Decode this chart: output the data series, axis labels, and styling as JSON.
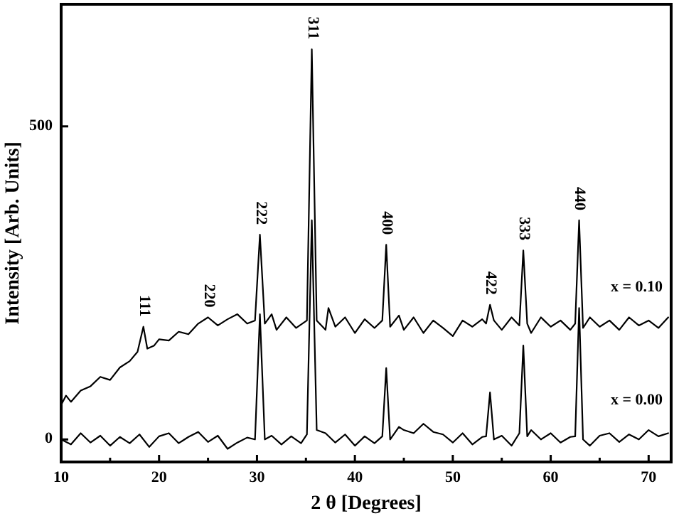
{
  "chart_data": {
    "type": "line",
    "xlabel": "2 θ [Degrees]",
    "ylabel": "Intensity [Arb. Units]",
    "xlim": [
      10,
      72.3
    ],
    "ylim": [
      -36,
      695
    ],
    "xticks": [
      10,
      {
        "value": 15,
        "label": null
      },
      20,
      {
        "value": 25,
        "label": null
      },
      30,
      {
        "value": 35,
        "label": null
      },
      40,
      {
        "value": 45,
        "label": null
      },
      50,
      {
        "value": 55,
        "label": null
      },
      60,
      {
        "value": 65,
        "label": null
      },
      70
    ],
    "yticks": [
      0,
      500
    ],
    "grid": false,
    "line_style": "solid",
    "series": [
      {
        "name": "x = 0.10",
        "color": "#000000",
        "x": [
          10,
          10.5,
          11,
          12,
          13,
          14,
          15,
          16,
          17,
          17.8,
          18.4,
          18.8,
          19.5,
          20,
          21,
          22,
          23,
          24,
          25,
          26,
          27,
          28,
          29,
          29.8,
          30.3,
          30.8,
          31.5,
          32,
          33,
          34,
          35.1,
          35.6,
          36.1,
          37,
          37.3,
          38,
          39,
          40,
          41,
          42,
          42.8,
          43.2,
          43.6,
          44.5,
          45,
          46,
          47,
          48,
          49,
          50,
          51,
          52,
          53,
          53.4,
          53.8,
          54.2,
          55,
          56,
          56.8,
          57.2,
          57.6,
          58,
          59,
          60,
          61,
          62,
          62.5,
          62.9,
          63.3,
          64,
          65,
          66,
          67,
          68,
          69,
          70,
          71,
          72
        ],
        "values": [
          55,
          70,
          60,
          78,
          85,
          100,
          95,
          115,
          125,
          140,
          180,
          145,
          150,
          160,
          158,
          172,
          168,
          185,
          195,
          182,
          192,
          200,
          185,
          190,
          327,
          185,
          200,
          175,
          195,
          178,
          190,
          623,
          190,
          175,
          210,
          180,
          195,
          170,
          192,
          178,
          190,
          311,
          180,
          198,
          175,
          195,
          170,
          190,
          178,
          165,
          190,
          180,
          192,
          185,
          215,
          190,
          175,
          195,
          182,
          302,
          185,
          170,
          195,
          180,
          190,
          175,
          185,
          350,
          178,
          195,
          180,
          190,
          175,
          195,
          182,
          190,
          178,
          195
        ]
      },
      {
        "name": "x = 0.00",
        "color": "#000000",
        "x": [
          10,
          11,
          12,
          13,
          14,
          15,
          16,
          17,
          18,
          19,
          20,
          21,
          22,
          23,
          24,
          25,
          26,
          27,
          28,
          29,
          29.8,
          30.3,
          30.8,
          31.5,
          32.5,
          33.5,
          34.5,
          35.1,
          35.6,
          36.1,
          37,
          38,
          39,
          40,
          41,
          42,
          42.8,
          43.2,
          43.6,
          44.5,
          45,
          46,
          47,
          48,
          49,
          50,
          51,
          52,
          53,
          53.4,
          53.8,
          54.2,
          55,
          56,
          56.8,
          57.2,
          57.6,
          58,
          59,
          60,
          61,
          62,
          62.5,
          62.9,
          63.3,
          64,
          65,
          66,
          67,
          68,
          69,
          70,
          71,
          72
        ],
        "values": [
          0,
          -8,
          10,
          -5,
          6,
          -10,
          4,
          -6,
          8,
          -12,
          5,
          10,
          -6,
          4,
          12,
          -4,
          6,
          -15,
          -5,
          3,
          0,
          200,
          0,
          6,
          -8,
          5,
          -6,
          8,
          350,
          15,
          10,
          -5,
          8,
          -10,
          5,
          -6,
          5,
          114,
          0,
          20,
          15,
          10,
          25,
          12,
          8,
          -5,
          10,
          -8,
          4,
          5,
          75,
          0,
          6,
          -10,
          10,
          150,
          5,
          15,
          0,
          10,
          -5,
          4,
          5,
          210,
          0,
          -10,
          6,
          10,
          -4,
          8,
          0,
          15,
          5,
          10
        ]
      }
    ],
    "annotations": [
      {
        "text": "111",
        "x": 18.4,
        "y": 180
      },
      {
        "text": "220",
        "x": 25,
        "y": 195
      },
      {
        "text": "222",
        "x": 30.3,
        "y": 327
      },
      {
        "text": "311",
        "x": 35.6,
        "y": 623
      },
      {
        "text": "400",
        "x": 43.2,
        "y": 311
      },
      {
        "text": "422",
        "x": 53.8,
        "y": 215
      },
      {
        "text": "333",
        "x": 57.2,
        "y": 302
      },
      {
        "text": "440",
        "x": 62.9,
        "y": 350
      }
    ]
  }
}
